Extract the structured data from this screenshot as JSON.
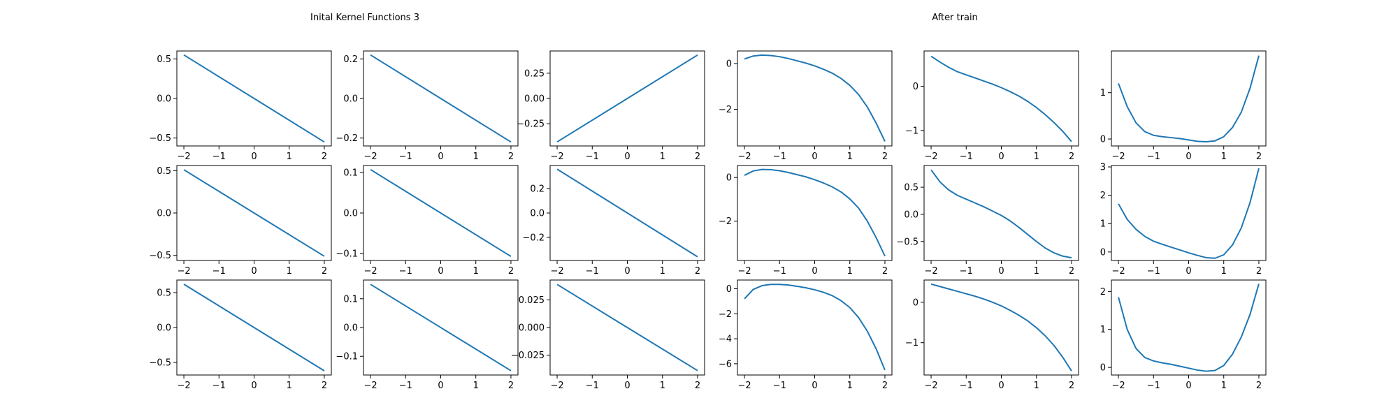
{
  "figure": {
    "left_title": "Inital Kernel Functions 3",
    "right_title": "After train"
  },
  "style": {
    "line_color": "#1f77b4",
    "axes_color": "#000000",
    "background": "#ffffff"
  },
  "chart_data": [
    {
      "type": "line",
      "panel": "initial",
      "row": 1,
      "col": 1,
      "x_range": [
        -2,
        2
      ],
      "xticks": [
        -2,
        -1,
        0,
        1,
        2
      ],
      "xtick_labels": [
        "−2",
        "−1",
        "0",
        "1",
        "2"
      ],
      "ylim": [
        -0.6,
        0.6
      ],
      "yticks": [
        0.5,
        0.0,
        -0.5
      ],
      "ytick_labels": [
        "0.5",
        "0.0",
        "−0.5"
      ],
      "series": [
        {
          "x": [
            -2,
            2
          ],
          "y": [
            0.55,
            -0.55
          ]
        }
      ]
    },
    {
      "type": "line",
      "panel": "initial",
      "row": 1,
      "col": 2,
      "x_range": [
        -2,
        2
      ],
      "xticks": [
        -2,
        -1,
        0,
        1,
        2
      ],
      "xtick_labels": [
        "−2",
        "−1",
        "0",
        "1",
        "2"
      ],
      "ylim": [
        -0.24,
        0.24
      ],
      "yticks": [
        0.2,
        0.0,
        -0.2
      ],
      "ytick_labels": [
        "0.2",
        "0.0",
        "−0.2"
      ],
      "series": [
        {
          "x": [
            -2,
            2
          ],
          "y": [
            0.22,
            -0.22
          ]
        }
      ]
    },
    {
      "type": "line",
      "panel": "initial",
      "row": 1,
      "col": 3,
      "x_range": [
        -2,
        2
      ],
      "xticks": [
        -2,
        -1,
        0,
        1,
        2
      ],
      "xtick_labels": [
        "−2",
        "−1",
        "0",
        "1",
        "2"
      ],
      "ylim": [
        -0.47,
        0.47
      ],
      "yticks": [
        0.25,
        0.0,
        -0.25
      ],
      "ytick_labels": [
        "0.25",
        "0.00",
        "−0.25"
      ],
      "series": [
        {
          "x": [
            -2,
            2
          ],
          "y": [
            -0.43,
            0.43
          ]
        }
      ]
    },
    {
      "type": "line",
      "panel": "after_train",
      "row": 1,
      "col": 4,
      "x_range": [
        -2,
        2
      ],
      "xticks": [
        -2,
        -1,
        0,
        1,
        2
      ],
      "xtick_labels": [
        "−2",
        "−1",
        "0",
        "1",
        "2"
      ],
      "ylim": [
        -3.6,
        0.55
      ],
      "yticks": [
        0,
        -2
      ],
      "ytick_labels": [
        "0",
        "−2"
      ],
      "series": [
        {
          "x": [
            -2,
            -1.75,
            -1.5,
            -1.25,
            -1,
            -0.75,
            -0.5,
            -0.25,
            0,
            0.25,
            0.5,
            0.75,
            1,
            1.25,
            1.5,
            1.75,
            2
          ],
          "y": [
            0.2,
            0.33,
            0.37,
            0.35,
            0.3,
            0.22,
            0.12,
            0.02,
            -0.1,
            -0.25,
            -0.42,
            -0.65,
            -0.95,
            -1.35,
            -1.9,
            -2.6,
            -3.4
          ]
        }
      ]
    },
    {
      "type": "line",
      "panel": "after_train",
      "row": 1,
      "col": 5,
      "x_range": [
        -2,
        2
      ],
      "xticks": [
        -2,
        -1,
        0,
        1,
        2
      ],
      "xtick_labels": [
        "−2",
        "−1",
        "0",
        "1",
        "2"
      ],
      "ylim": [
        -1.35,
        0.8
      ],
      "yticks": [
        0,
        -1
      ],
      "ytick_labels": [
        "0",
        "−1"
      ],
      "series": [
        {
          "x": [
            -2,
            -1.75,
            -1.5,
            -1.25,
            -1,
            -0.75,
            -0.5,
            -0.25,
            0,
            0.25,
            0.5,
            0.75,
            1,
            1.25,
            1.5,
            1.75,
            2
          ],
          "y": [
            0.68,
            0.55,
            0.43,
            0.33,
            0.26,
            0.19,
            0.12,
            0.05,
            -0.03,
            -0.12,
            -0.22,
            -0.34,
            -0.48,
            -0.64,
            -0.82,
            -1.02,
            -1.25
          ]
        }
      ]
    },
    {
      "type": "line",
      "panel": "after_train",
      "row": 1,
      "col": 6,
      "x_range": [
        -2,
        2
      ],
      "xticks": [
        -2,
        -1,
        0,
        1,
        2
      ],
      "xtick_labels": [
        "−2",
        "−1",
        "0",
        "1",
        "2"
      ],
      "ylim": [
        -0.15,
        1.9
      ],
      "yticks": [
        1,
        0
      ],
      "ytick_labels": [
        "1",
        "0"
      ],
      "series": [
        {
          "x": [
            -2,
            -1.75,
            -1.5,
            -1.25,
            -1,
            -0.75,
            -0.5,
            -0.25,
            0,
            0.25,
            0.5,
            0.75,
            1,
            1.25,
            1.5,
            1.75,
            2
          ],
          "y": [
            1.2,
            0.7,
            0.35,
            0.16,
            0.08,
            0.05,
            0.03,
            0.01,
            -0.02,
            -0.05,
            -0.06,
            -0.04,
            0.05,
            0.25,
            0.58,
            1.1,
            1.8
          ]
        }
      ]
    },
    {
      "type": "line",
      "panel": "initial",
      "row": 2,
      "col": 1,
      "x_range": [
        -2,
        2
      ],
      "xticks": [
        -2,
        -1,
        0,
        1,
        2
      ],
      "xtick_labels": [
        "−2",
        "−1",
        "0",
        "1",
        "2"
      ],
      "ylim": [
        -0.56,
        0.56
      ],
      "yticks": [
        0.5,
        0.0,
        -0.5
      ],
      "ytick_labels": [
        "0.5",
        "0.0",
        "−0.5"
      ],
      "series": [
        {
          "x": [
            -2,
            2
          ],
          "y": [
            0.51,
            -0.51
          ]
        }
      ]
    },
    {
      "type": "line",
      "panel": "initial",
      "row": 2,
      "col": 2,
      "x_range": [
        -2,
        2
      ],
      "xticks": [
        -2,
        -1,
        0,
        1,
        2
      ],
      "xtick_labels": [
        "−2",
        "−1",
        "0",
        "1",
        "2"
      ],
      "ylim": [
        -0.117,
        0.117
      ],
      "yticks": [
        0.1,
        0.0,
        -0.1
      ],
      "ytick_labels": [
        "0.1",
        "0.0",
        "−0.1"
      ],
      "series": [
        {
          "x": [
            -2,
            2
          ],
          "y": [
            0.107,
            -0.107
          ]
        }
      ]
    },
    {
      "type": "line",
      "panel": "initial",
      "row": 2,
      "col": 3,
      "x_range": [
        -2,
        2
      ],
      "xticks": [
        -2,
        -1,
        0,
        1,
        2
      ],
      "xtick_labels": [
        "−2",
        "−1",
        "0",
        "1",
        "2"
      ],
      "ylim": [
        -0.39,
        0.39
      ],
      "yticks": [
        0.2,
        0.0,
        -0.2
      ],
      "ytick_labels": [
        "0.2",
        "0.0",
        "−0.2"
      ],
      "series": [
        {
          "x": [
            -2,
            2
          ],
          "y": [
            0.36,
            -0.36
          ]
        }
      ]
    },
    {
      "type": "line",
      "panel": "after_train",
      "row": 2,
      "col": 4,
      "x_range": [
        -2,
        2
      ],
      "xticks": [
        -2,
        -1,
        0,
        1,
        2
      ],
      "xtick_labels": [
        "−2",
        "−1",
        "0",
        "1",
        "2"
      ],
      "ylim": [
        -3.8,
        0.55
      ],
      "yticks": [
        0,
        -2
      ],
      "ytick_labels": [
        "0",
        "−2"
      ],
      "series": [
        {
          "x": [
            -2,
            -1.75,
            -1.5,
            -1.25,
            -1,
            -0.75,
            -0.5,
            -0.25,
            0,
            0.25,
            0.5,
            0.75,
            1,
            1.25,
            1.5,
            1.75,
            2
          ],
          "y": [
            0.1,
            0.3,
            0.37,
            0.36,
            0.31,
            0.23,
            0.13,
            0.03,
            -0.1,
            -0.25,
            -0.43,
            -0.66,
            -0.98,
            -1.4,
            -2.0,
            -2.75,
            -3.6
          ]
        }
      ]
    },
    {
      "type": "line",
      "panel": "after_train",
      "row": 2,
      "col": 5,
      "x_range": [
        -2,
        2
      ],
      "xticks": [
        -2,
        -1,
        0,
        1,
        2
      ],
      "xtick_labels": [
        "−2",
        "−1",
        "0",
        "1",
        "2"
      ],
      "ylim": [
        -0.85,
        0.9
      ],
      "yticks": [
        0.5,
        0.0,
        -0.5
      ],
      "ytick_labels": [
        "0.5",
        "0.0",
        "−0.5"
      ],
      "series": [
        {
          "x": [
            -2,
            -1.75,
            -1.5,
            -1.25,
            -1,
            -0.75,
            -0.5,
            -0.25,
            0,
            0.25,
            0.5,
            0.75,
            1,
            1.25,
            1.5,
            1.75,
            2
          ],
          "y": [
            0.82,
            0.6,
            0.45,
            0.35,
            0.28,
            0.21,
            0.14,
            0.06,
            -0.02,
            -0.12,
            -0.24,
            -0.37,
            -0.5,
            -0.62,
            -0.71,
            -0.77,
            -0.8
          ]
        }
      ]
    },
    {
      "type": "line",
      "panel": "after_train",
      "row": 2,
      "col": 6,
      "x_range": [
        -2,
        2
      ],
      "xticks": [
        -2,
        -1,
        0,
        1,
        2
      ],
      "xtick_labels": [
        "−2",
        "−1",
        "0",
        "1",
        "2"
      ],
      "ylim": [
        -0.3,
        3.05
      ],
      "yticks": [
        3,
        2,
        1,
        0
      ],
      "ytick_labels": [
        "3",
        "2",
        "1",
        "0"
      ],
      "series": [
        {
          "x": [
            -2,
            -1.75,
            -1.5,
            -1.25,
            -1,
            -0.75,
            -0.5,
            -0.25,
            0,
            0.25,
            0.5,
            0.75,
            1,
            1.25,
            1.5,
            1.75,
            2
          ],
          "y": [
            1.7,
            1.15,
            0.8,
            0.55,
            0.38,
            0.27,
            0.17,
            0.07,
            -0.03,
            -0.12,
            -0.2,
            -0.22,
            -0.1,
            0.25,
            0.85,
            1.75,
            2.95
          ]
        }
      ]
    },
    {
      "type": "line",
      "panel": "initial",
      "row": 3,
      "col": 1,
      "x_range": [
        -2,
        2
      ],
      "xticks": [
        -2,
        -1,
        0,
        1,
        2
      ],
      "xtick_labels": [
        "−2",
        "−1",
        "0",
        "1",
        "2"
      ],
      "ylim": [
        -0.68,
        0.68
      ],
      "yticks": [
        0.5,
        0.0,
        -0.5
      ],
      "ytick_labels": [
        "0.5",
        "0.0",
        "−0.5"
      ],
      "series": [
        {
          "x": [
            -2,
            2
          ],
          "y": [
            0.62,
            -0.62
          ]
        }
      ]
    },
    {
      "type": "line",
      "panel": "initial",
      "row": 3,
      "col": 2,
      "x_range": [
        -2,
        2
      ],
      "xticks": [
        -2,
        -1,
        0,
        1,
        2
      ],
      "xtick_labels": [
        "−2",
        "−1",
        "0",
        "1",
        "2"
      ],
      "ylim": [
        -0.165,
        0.165
      ],
      "yticks": [
        0.1,
        0.0,
        -0.1
      ],
      "ytick_labels": [
        "0.1",
        "0.0",
        "−0.1"
      ],
      "series": [
        {
          "x": [
            -2,
            2
          ],
          "y": [
            0.15,
            -0.15
          ]
        }
      ]
    },
    {
      "type": "line",
      "panel": "initial",
      "row": 3,
      "col": 3,
      "x_range": [
        -2,
        2
      ],
      "xticks": [
        -2,
        -1,
        0,
        1,
        2
      ],
      "xtick_labels": [
        "−2",
        "−1",
        "0",
        "1",
        "2"
      ],
      "ylim": [
        -0.043,
        0.043
      ],
      "yticks": [
        0.025,
        0.0,
        -0.025
      ],
      "ytick_labels": [
        "0.025",
        "0.000",
        "−0.025"
      ],
      "series": [
        {
          "x": [
            -2,
            2
          ],
          "y": [
            0.039,
            -0.039
          ]
        }
      ]
    },
    {
      "type": "line",
      "panel": "after_train",
      "row": 3,
      "col": 4,
      "x_range": [
        -2,
        2
      ],
      "xticks": [
        -2,
        -1,
        0,
        1,
        2
      ],
      "xtick_labels": [
        "−2",
        "−1",
        "0",
        "1",
        "2"
      ],
      "ylim": [
        -6.9,
        0.7
      ],
      "yticks": [
        0,
        -2,
        -4,
        -6
      ],
      "ytick_labels": [
        "0",
        "−2",
        "−4",
        "−6"
      ],
      "series": [
        {
          "x": [
            -2,
            -1.75,
            -1.5,
            -1.25,
            -1,
            -0.75,
            -0.5,
            -0.25,
            0,
            0.25,
            0.5,
            0.75,
            1,
            1.25,
            1.5,
            1.75,
            2
          ],
          "y": [
            -0.8,
            -0.05,
            0.25,
            0.35,
            0.35,
            0.3,
            0.2,
            0.08,
            -0.08,
            -0.28,
            -0.55,
            -0.95,
            -1.5,
            -2.3,
            -3.4,
            -4.8,
            -6.5
          ]
        }
      ]
    },
    {
      "type": "line",
      "panel": "after_train",
      "row": 3,
      "col": 5,
      "x_range": [
        -2,
        2
      ],
      "xticks": [
        -2,
        -1,
        0,
        1,
        2
      ],
      "xtick_labels": [
        "−2",
        "−1",
        "0",
        "1",
        "2"
      ],
      "ylim": [
        -1.8,
        0.55
      ],
      "yticks": [
        0,
        -1
      ],
      "ytick_labels": [
        "0",
        "−1"
      ],
      "series": [
        {
          "x": [
            -2,
            -1.75,
            -1.5,
            -1.25,
            -1,
            -0.75,
            -0.5,
            -0.25,
            0,
            0.25,
            0.5,
            0.75,
            1,
            1.25,
            1.5,
            1.75,
            2
          ],
          "y": [
            0.45,
            0.39,
            0.33,
            0.27,
            0.21,
            0.15,
            0.08,
            0.0,
            -0.09,
            -0.2,
            -0.32,
            -0.46,
            -0.63,
            -0.83,
            -1.07,
            -1.36,
            -1.7
          ]
        }
      ]
    },
    {
      "type": "line",
      "panel": "after_train",
      "row": 3,
      "col": 6,
      "x_range": [
        -2,
        2
      ],
      "xticks": [
        -2,
        -1,
        0,
        1,
        2
      ],
      "xtick_labels": [
        "−2",
        "−1",
        "0",
        "1",
        "2"
      ],
      "ylim": [
        -0.2,
        2.3
      ],
      "yticks": [
        2,
        1,
        0
      ],
      "ytick_labels": [
        "2",
        "1",
        "0"
      ],
      "series": [
        {
          "x": [
            -2,
            -1.75,
            -1.5,
            -1.25,
            -1,
            -0.75,
            -0.5,
            -0.25,
            0,
            0.25,
            0.5,
            0.75,
            1,
            1.25,
            1.5,
            1.75,
            2
          ],
          "y": [
            1.85,
            1.0,
            0.5,
            0.26,
            0.17,
            0.12,
            0.08,
            0.03,
            -0.02,
            -0.07,
            -0.1,
            -0.08,
            0.05,
            0.35,
            0.8,
            1.4,
            2.2
          ]
        }
      ]
    }
  ]
}
